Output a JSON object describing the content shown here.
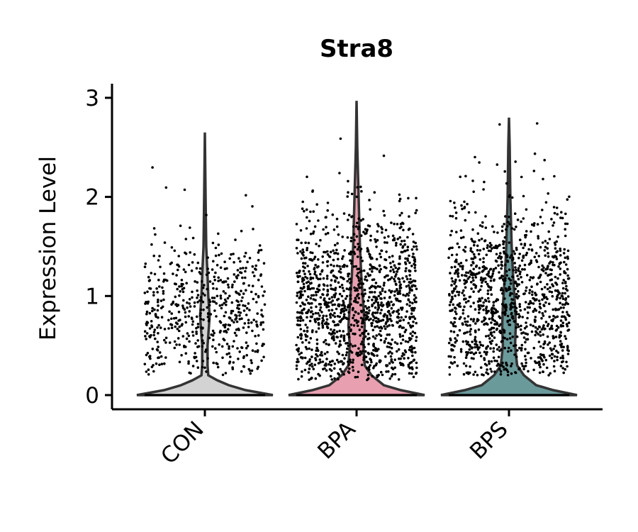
{
  "chart_data": {
    "type": "violin",
    "title": "Stra8",
    "ylabel": "Expression Level",
    "xlabel": "",
    "ylim": [
      0,
      3.0
    ],
    "yticks": [
      0,
      1,
      2,
      3
    ],
    "categories": [
      "CON",
      "BPA",
      "BPS"
    ],
    "colors": [
      "#d3d3d3",
      "#e8a0b0",
      "#6b9a9b"
    ],
    "grid": false,
    "legend": "none",
    "violins": [
      {
        "name": "CON",
        "max": 2.65,
        "density": [
          [
            0.0,
            1.0
          ],
          [
            0.05,
            0.6
          ],
          [
            0.1,
            0.35
          ],
          [
            0.15,
            0.18
          ],
          [
            0.2,
            0.05
          ],
          [
            0.3,
            0.04
          ],
          [
            0.5,
            0.04
          ],
          [
            0.7,
            0.06
          ],
          [
            0.8,
            0.07
          ],
          [
            1.0,
            0.05
          ],
          [
            1.2,
            0.04
          ],
          [
            1.5,
            0.02
          ],
          [
            2.0,
            0.01
          ],
          [
            2.65,
            0.0
          ]
        ],
        "points": {
          "count": 560,
          "center": 0.85,
          "spread": 0.38,
          "min": 0.2,
          "max": 2.65
        }
      },
      {
        "name": "BPA",
        "max": 2.97,
        "density": [
          [
            0.0,
            1.0
          ],
          [
            0.05,
            0.65
          ],
          [
            0.1,
            0.4
          ],
          [
            0.2,
            0.22
          ],
          [
            0.3,
            0.12
          ],
          [
            0.5,
            0.1
          ],
          [
            0.7,
            0.12
          ],
          [
            0.9,
            0.1
          ],
          [
            1.2,
            0.07
          ],
          [
            1.5,
            0.05
          ],
          [
            2.0,
            0.03
          ],
          [
            2.5,
            0.01
          ],
          [
            2.97,
            0.0
          ]
        ],
        "points": {
          "count": 1300,
          "center": 0.9,
          "spread": 0.48,
          "min": 0.15,
          "max": 2.97
        }
      },
      {
        "name": "BPS",
        "max": 2.8,
        "density": [
          [
            0.0,
            1.0
          ],
          [
            0.05,
            0.65
          ],
          [
            0.1,
            0.4
          ],
          [
            0.2,
            0.22
          ],
          [
            0.3,
            0.12
          ],
          [
            0.5,
            0.09
          ],
          [
            0.7,
            0.1
          ],
          [
            0.9,
            0.09
          ],
          [
            1.2,
            0.06
          ],
          [
            1.5,
            0.04
          ],
          [
            2.0,
            0.02
          ],
          [
            2.5,
            0.01
          ],
          [
            2.8,
            0.0
          ]
        ],
        "points": {
          "count": 1150,
          "center": 0.95,
          "spread": 0.5,
          "min": 0.2,
          "max": 2.8
        }
      }
    ]
  }
}
